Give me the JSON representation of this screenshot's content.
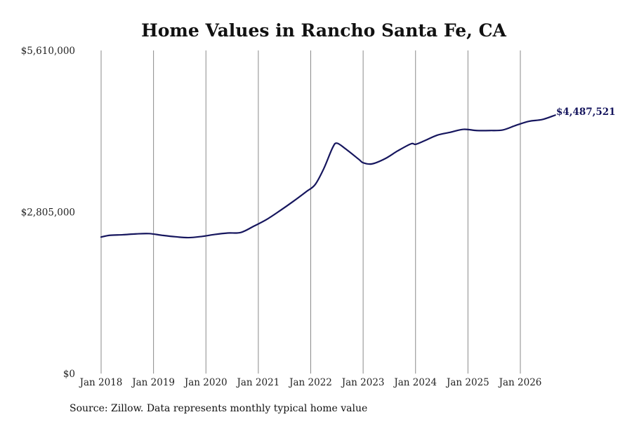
{
  "chart_data": {
    "type": "line",
    "title": "Home Values in Rancho Santa Fe, CA",
    "xlabel": "",
    "ylabel": "",
    "source": "Source: Zillow. Data represents monthly typical home value",
    "ylim": [
      0,
      5610000
    ],
    "y_ticks": [
      {
        "value": 0,
        "label": "$0"
      },
      {
        "value": 2805000,
        "label": "$2,805,000"
      },
      {
        "value": 5610000,
        "label": "$5,610,000"
      }
    ],
    "x_ticks": [
      {
        "date": "2018-01",
        "label": "Jan 2018"
      },
      {
        "date": "2019-01",
        "label": "Jan 2019"
      },
      {
        "date": "2020-01",
        "label": "Jan 2020"
      },
      {
        "date": "2021-01",
        "label": "Jan 2021"
      },
      {
        "date": "2022-01",
        "label": "Jan 2022"
      },
      {
        "date": "2023-01",
        "label": "Jan 2023"
      },
      {
        "date": "2024-01",
        "label": "Jan 2024"
      },
      {
        "date": "2025-01",
        "label": "Jan 2025"
      },
      {
        "date": "2026-01",
        "label": "Jan 2026"
      }
    ],
    "grid": "vertical",
    "line_color": "#16165e",
    "end_label": "$4,487,521",
    "x": [
      "2018-01",
      "2018-03",
      "2018-06",
      "2018-09",
      "2018-12",
      "2019-03",
      "2019-06",
      "2019-09",
      "2019-12",
      "2020-03",
      "2020-06",
      "2020-09",
      "2020-12",
      "2021-03",
      "2021-06",
      "2021-09",
      "2021-12",
      "2022-02",
      "2022-04",
      "2022-06",
      "2022-07",
      "2022-09",
      "2022-12",
      "2023-01",
      "2023-03",
      "2023-06",
      "2023-09",
      "2023-12",
      "2024-01",
      "2024-03",
      "2024-06",
      "2024-09",
      "2024-12",
      "2025-03",
      "2025-06",
      "2025-09",
      "2025-12",
      "2026-03",
      "2026-06",
      "2026-09"
    ],
    "series": [
      {
        "values": [
          2370000,
          2400000,
          2410000,
          2425000,
          2430000,
          2400000,
          2375000,
          2360000,
          2380000,
          2415000,
          2440000,
          2450000,
          2560000,
          2680000,
          2830000,
          2990000,
          3160000,
          3280000,
          3560000,
          3920000,
          4000000,
          3900000,
          3720000,
          3660000,
          3640000,
          3730000,
          3870000,
          3990000,
          3980000,
          4040000,
          4140000,
          4190000,
          4240000,
          4220000,
          4220000,
          4230000,
          4310000,
          4380000,
          4410000,
          4487521
        ]
      }
    ]
  }
}
